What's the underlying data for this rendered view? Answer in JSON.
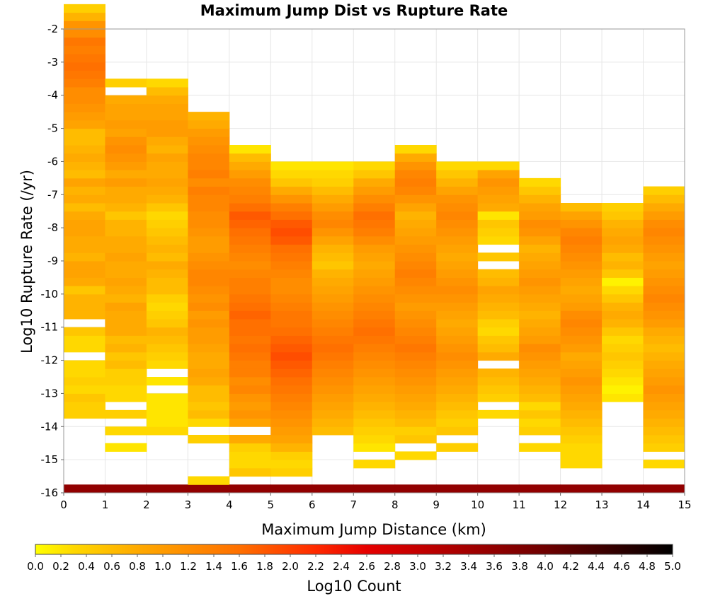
{
  "chart_data": {
    "type": "heatmap",
    "title": "Maximum Jump Dist vs Rupture Rate",
    "xlabel": "Maximum Jump Distance (km)",
    "ylabel": "Log10 Rupture Rate (/yr)",
    "xlim": [
      0,
      15
    ],
    "ylim": [
      -16,
      -2
    ],
    "x_ticks": [
      "0",
      "1",
      "2",
      "3",
      "4",
      "5",
      "6",
      "7",
      "8",
      "9",
      "10",
      "11",
      "12",
      "13",
      "14",
      "15"
    ],
    "y_ticks": [
      "-2",
      "-3",
      "-4",
      "-5",
      "-6",
      "-7",
      "-8",
      "-9",
      "-10",
      "-11",
      "-12",
      "-13",
      "-14",
      "-15",
      "-16"
    ],
    "x_bin_width": 1,
    "y_bin_height": 0.25,
    "y_bin_start": -16,
    "colorbar": {
      "label": "Log10 Count",
      "range": [
        0,
        5
      ],
      "ticks": [
        "0.0",
        "0.2",
        "0.4",
        "0.6",
        "0.8",
        "1.0",
        "1.2",
        "1.4",
        "1.6",
        "1.8",
        "2.0",
        "2.2",
        "2.4",
        "2.6",
        "2.8",
        "3.0",
        "3.2",
        "3.4",
        "3.6",
        "3.8",
        "4.0",
        "4.2",
        "4.4",
        "4.6",
        "4.8",
        "5.0"
      ],
      "stops": [
        {
          "v": 0.0,
          "color": "#ffff00"
        },
        {
          "v": 0.3,
          "color": "#ffd800"
        },
        {
          "v": 0.8,
          "color": "#ffaa00"
        },
        {
          "v": 1.6,
          "color": "#ff7000"
        },
        {
          "v": 2.2,
          "color": "#ff2a00"
        },
        {
          "v": 2.6,
          "color": "#e60000"
        },
        {
          "v": 3.2,
          "color": "#b40000"
        },
        {
          "v": 4.0,
          "color": "#6e0000"
        },
        {
          "v": 5.0,
          "color": "#000000"
        }
      ]
    },
    "columns": [
      {
        "x_start": 0,
        "start": 0,
        "values": [
          3.6,
          0,
          0,
          0,
          0,
          0,
          0,
          0,
          0,
          0.4,
          0.4,
          0.5,
          0.3,
          0.4,
          0.3,
          0.3,
          0,
          0.3,
          0.3,
          0.5,
          0,
          0.7,
          0.7,
          0.7,
          0.5,
          0.8,
          0.9,
          0.9,
          0.7,
          0.8,
          0.8,
          0.9,
          0.9,
          0.8,
          0.6,
          0.8,
          0.7,
          0.9,
          0.6,
          0.7,
          0.8,
          0.7,
          0.6,
          0.6,
          0.9,
          1.0,
          1.1,
          1.2,
          1.2,
          1.4,
          1.5,
          1.6,
          1.5,
          1.4,
          1.5,
          1.2,
          1.1,
          0.7,
          0.4
        ]
      },
      {
        "x_start": 1,
        "start": 0,
        "values": [
          3.6,
          0,
          0,
          0,
          0,
          0.2,
          0,
          0.3,
          0,
          0.4,
          0,
          0.3,
          0.3,
          0.4,
          0.4,
          0.6,
          0.5,
          0.7,
          0.6,
          0.8,
          0.8,
          0.8,
          0.9,
          0.7,
          0.8,
          0.9,
          0.8,
          0.8,
          0.9,
          0.8,
          0.8,
          0.7,
          0.7,
          0.5,
          0.7,
          0.8,
          0.8,
          1.0,
          0.8,
          1.0,
          1.1,
          1.2,
          1.1,
          0.9,
          1.0,
          0.9,
          0.9,
          0.8,
          0,
          0.4
        ]
      },
      {
        "x_start": 2,
        "start": 0,
        "values": [
          3.6,
          0,
          0,
          0,
          0,
          0,
          0,
          0.3,
          0.2,
          0.2,
          0.2,
          0.2,
          0,
          0.2,
          0,
          0.3,
          0.4,
          0.5,
          0.6,
          0.7,
          0.5,
          0.4,
          0.3,
          0.4,
          0.6,
          0.6,
          0.7,
          0.8,
          0.6,
          0.7,
          0.6,
          0.5,
          0.4,
          0.3,
          0.5,
          0.7,
          0.8,
          0.9,
          0.8,
          0.8,
          0.9,
          0.7,
          0.8,
          1.0,
          1.0,
          0.9,
          0.9,
          0.8,
          0.6,
          0.3
        ]
      },
      {
        "x_start": 3,
        "start": 0,
        "values": [
          3.6,
          0.3,
          0,
          0,
          0,
          0,
          0.4,
          0,
          0.3,
          0.6,
          0.5,
          0.6,
          0.6,
          0.8,
          0.9,
          0.8,
          0.8,
          0.9,
          1.0,
          1.0,
          1.1,
          1.0,
          1.2,
          1.1,
          1.2,
          1.3,
          1.3,
          1.2,
          1.1,
          1.0,
          1.0,
          1.1,
          1.2,
          1.2,
          1.3,
          1.3,
          1.4,
          1.2,
          1.4,
          1.3,
          1.3,
          1.2,
          1.1,
          1.0,
          0.8,
          0.7
        ]
      },
      {
        "x_start": 4,
        "start": 0,
        "values": [
          3.6,
          0,
          0.5,
          0.3,
          0.3,
          0.4,
          0.8,
          0,
          0.9,
          1.1,
          1.0,
          1.1,
          1.3,
          1.2,
          1.4,
          1.4,
          1.5,
          1.6,
          1.5,
          1.6,
          1.6,
          1.7,
          1.6,
          1.5,
          1.4,
          1.4,
          1.3,
          1.2,
          1.3,
          1.4,
          1.5,
          1.6,
          1.7,
          1.8,
          1.6,
          1.4,
          1.3,
          1.2,
          1.0,
          0.8,
          0.6,
          0.2
        ]
      },
      {
        "x_start": 5,
        "start": 0,
        "values": [
          3.6,
          0,
          0.4,
          0.3,
          0.4,
          0.7,
          0.9,
          1.0,
          1.1,
          1.2,
          1.3,
          1.4,
          1.5,
          1.6,
          1.7,
          1.8,
          1.9,
          1.8,
          1.7,
          1.6,
          1.5,
          1.5,
          1.4,
          1.3,
          1.2,
          1.2,
          1.3,
          1.4,
          1.5,
          1.6,
          1.8,
          1.9,
          1.8,
          1.6,
          1.4,
          1.1,
          0.8,
          0.5,
          0.3,
          0.2
        ]
      },
      {
        "x_start": 6,
        "start": 0,
        "values": [
          3.6,
          0,
          0,
          0,
          0,
          0,
          0,
          0.6,
          0.7,
          0.8,
          0.9,
          1.0,
          1.1,
          1.2,
          1.3,
          1.4,
          1.5,
          1.6,
          1.5,
          1.4,
          1.3,
          1.2,
          1.1,
          1.0,
          0.9,
          0.8,
          0.7,
          0.5,
          0.6,
          0.7,
          0.9,
          1.1,
          1.3,
          1.2,
          1.0,
          0.8,
          0.6,
          0.4,
          0.3,
          0.2
        ]
      },
      {
        "x_start": 7,
        "start": 0,
        "values": [
          3.6,
          0,
          0,
          0.3,
          0,
          0.2,
          0.3,
          0.4,
          0.5,
          0.6,
          0.7,
          0.8,
          0.9,
          1.0,
          1.1,
          1.2,
          1.3,
          1.4,
          1.5,
          1.6,
          1.5,
          1.4,
          1.3,
          1.2,
          1.1,
          1.0,
          0.9,
          0.8,
          0.9,
          1.0,
          1.2,
          1.4,
          1.5,
          1.6,
          1.4,
          1.2,
          1.0,
          0.8,
          0.5,
          0.3
        ]
      },
      {
        "x_start": 8,
        "start": 0,
        "values": [
          3.6,
          0,
          0,
          0,
          0.3,
          0,
          0.5,
          0.4,
          0.6,
          0.7,
          0.8,
          0.9,
          1.0,
          1.1,
          1.2,
          1.3,
          1.4,
          1.5,
          1.4,
          1.3,
          1.2,
          1.1,
          1.0,
          1.1,
          1.2,
          1.3,
          1.4,
          1.3,
          1.2,
          1.1,
          1.0,
          0.9,
          0.8,
          0.7,
          0.9,
          1.1,
          1.3,
          1.4,
          1.3,
          1.1,
          0.8,
          0.3
        ]
      },
      {
        "x_start": 9,
        "start": 0,
        "values": [
          3.6,
          0,
          0,
          0,
          0,
          0.4,
          0,
          0.5,
          0.4,
          0.5,
          0.6,
          0.7,
          0.8,
          0.9,
          1.0,
          1.1,
          1.2,
          1.1,
          1.0,
          0.9,
          0.8,
          0.9,
          1.0,
          1.1,
          1.2,
          1.1,
          1.0,
          0.9,
          0.8,
          0.9,
          1.0,
          1.1,
          1.2,
          1.3,
          1.2,
          1.1,
          0.9,
          0.7,
          0.5,
          0.3
        ]
      },
      {
        "x_start": 10,
        "start": 0,
        "values": [
          3.6,
          0,
          0,
          0,
          0,
          0,
          0,
          0,
          0,
          0.3,
          0,
          0.4,
          0.5,
          0.6,
          0.7,
          0,
          0.8,
          0.6,
          0.5,
          0.3,
          0.4,
          0.6,
          0.7,
          0.8,
          0.9,
          0.7,
          0.6,
          0,
          0.5,
          0,
          0.3,
          0.4,
          0.5,
          0.2,
          0.8,
          0.9,
          1.0,
          1.1,
          0.9,
          0.3
        ]
      },
      {
        "x_start": 11,
        "start": 0,
        "values": [
          3.6,
          0,
          0,
          0,
          0,
          0.3,
          0,
          0.4,
          0.3,
          0.5,
          0.3,
          0.6,
          0.7,
          0.8,
          0.9,
          1.0,
          1.1,
          1.2,
          1.0,
          0.9,
          0.8,
          0.7,
          0.8,
          0.9,
          1.0,
          1.1,
          1.0,
          0.9,
          0.8,
          0.7,
          0.9,
          1.1,
          1.2,
          1.0,
          0.9,
          0.7,
          0.5,
          0.3
        ]
      },
      {
        "x_start": 12,
        "start": 0,
        "values": [
          3.6,
          0,
          0,
          0.3,
          0.3,
          0.3,
          0.4,
          0.5,
          0.6,
          0.7,
          0.8,
          0.9,
          1.0,
          1.1,
          1.0,
          0.9,
          0.8,
          1.0,
          1.1,
          1.2,
          1.3,
          1.2,
          1.0,
          0.9,
          0.8,
          0.9,
          1.0,
          1.1,
          1.2,
          1.3,
          1.4,
          1.3,
          1.1,
          0.9,
          0.6
        ]
      },
      {
        "x_start": 13,
        "start": 0,
        "values": [
          3.6,
          0,
          0,
          0,
          0,
          0,
          0,
          0,
          0,
          0,
          0,
          0.2,
          0.1,
          0.2,
          0.3,
          0.4,
          0.5,
          0.4,
          0.3,
          0.5,
          0.7,
          0.8,
          0.7,
          0.5,
          0.3,
          0.1,
          0.5,
          0.7,
          0.6,
          0.8,
          0.9,
          0.8,
          0.7,
          0.5,
          0.4
        ]
      },
      {
        "x_start": 14,
        "start": 0,
        "values": [
          3.6,
          0,
          0,
          0.3,
          0,
          0.4,
          0.5,
          0.6,
          0.7,
          0.8,
          0.9,
          1.0,
          1.1,
          1.0,
          0.9,
          0.8,
          0.7,
          0.6,
          0.7,
          0.8,
          1.0,
          1.1,
          1.2,
          1.3,
          1.2,
          1.1,
          1.0,
          0.9,
          1.0,
          1.1,
          1.2,
          1.3,
          1.2,
          1.0,
          0.8,
          0.6,
          0.4
        ]
      }
    ]
  }
}
